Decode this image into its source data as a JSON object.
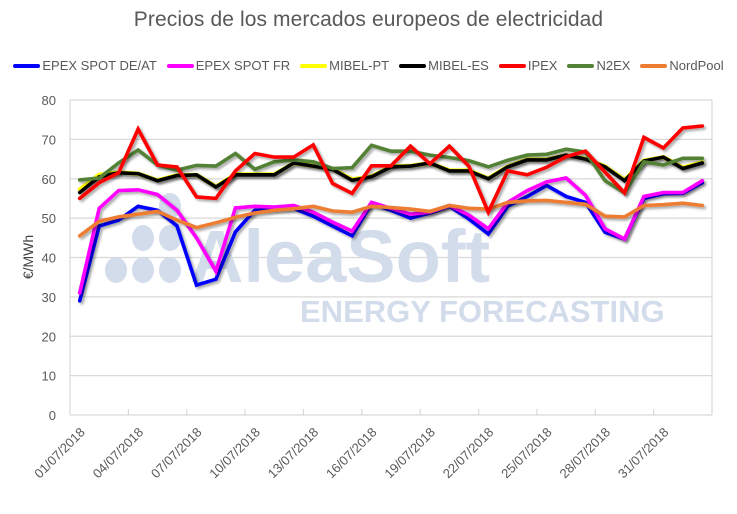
{
  "chart_data": {
    "type": "line",
    "title": "Precios de los mercados europeos de electricidad",
    "xlabel": "",
    "ylabel": "€/MWh",
    "ylim": [
      0,
      80
    ],
    "yticks": [
      0,
      10,
      20,
      30,
      40,
      50,
      60,
      70,
      80
    ],
    "grid": true,
    "legend_position": "top",
    "x": [
      "01/07/2018",
      "02/07/2018",
      "03/07/2018",
      "04/07/2018",
      "05/07/2018",
      "06/07/2018",
      "07/07/2018",
      "08/07/2018",
      "09/07/2018",
      "10/07/2018",
      "11/07/2018",
      "12/07/2018",
      "13/07/2018",
      "14/07/2018",
      "15/07/2018",
      "16/07/2018",
      "17/07/2018",
      "18/07/2018",
      "19/07/2018",
      "20/07/2018",
      "21/07/2018",
      "22/07/2018",
      "23/07/2018",
      "24/07/2018",
      "25/07/2018",
      "26/07/2018",
      "27/07/2018",
      "28/07/2018",
      "29/07/2018",
      "30/07/2018",
      "31/07/2018",
      "01/08/2018",
      "02/08/2018"
    ],
    "xtick_labels": [
      "01/07/2018",
      "04/07/2018",
      "07/07/2018",
      "10/07/2018",
      "13/07/2018",
      "16/07/2018",
      "19/07/2018",
      "22/07/2018",
      "25/07/2018",
      "28/07/2018",
      "31/07/2018"
    ],
    "series": [
      {
        "name": "EPEX SPOT DE/AT",
        "color": "#0000ff",
        "values": [
          29.0,
          48.0,
          49.5,
          53.0,
          52.0,
          48.0,
          33.0,
          34.5,
          46.5,
          52.0,
          52.3,
          52.5,
          50.5,
          48.0,
          45.5,
          53.7,
          52.0,
          50.0,
          51.3,
          53.0,
          49.8,
          46.0,
          53.0,
          55.5,
          58.3,
          55.5,
          54.0,
          46.4,
          44.7,
          55.0,
          56.2,
          56.3,
          59.0
        ]
      },
      {
        "name": "EPEX SPOT FR",
        "color": "#ff00ff",
        "values": [
          31.0,
          52.5,
          57.0,
          57.2,
          56.0,
          52.0,
          45.0,
          36.5,
          52.6,
          53.0,
          52.8,
          53.2,
          51.5,
          49.0,
          46.7,
          54.0,
          52.5,
          51.0,
          51.5,
          53.2,
          50.8,
          47.3,
          54.0,
          57.0,
          59.2,
          60.2,
          55.8,
          47.3,
          44.7,
          55.5,
          56.5,
          56.5,
          59.5
        ]
      },
      {
        "name": "MIBEL-PT",
        "color": "#ffff00",
        "values": [
          57.3,
          61.0,
          61.6,
          61.3,
          59.6,
          60.9,
          61.0,
          58.0,
          61.1,
          61.1,
          61.1,
          64.0,
          63.3,
          62.5,
          59.8,
          60.6,
          63.1,
          63.3,
          64.0,
          62.1,
          62.1,
          60.1,
          63.1,
          64.9,
          64.9,
          66.0,
          65.1,
          63.1,
          59.7,
          64.6,
          65.5,
          62.8,
          64.2
        ]
      },
      {
        "name": "MIBEL-ES",
        "color": "#000000",
        "values": [
          56.5,
          60.5,
          61.5,
          61.3,
          59.5,
          60.8,
          61.0,
          57.9,
          61.0,
          61.0,
          61.0,
          64.0,
          63.2,
          62.4,
          59.6,
          60.5,
          63.0,
          63.2,
          64.0,
          62.0,
          62.0,
          60.0,
          63.0,
          64.8,
          64.8,
          66.0,
          65.0,
          63.0,
          59.5,
          64.5,
          65.5,
          62.6,
          64.0
        ]
      },
      {
        "name": "IPEX",
        "color": "#ff0000",
        "values": [
          55.0,
          59.0,
          61.5,
          72.6,
          63.5,
          63.0,
          55.4,
          55.0,
          62.0,
          66.4,
          65.5,
          65.5,
          68.6,
          58.8,
          56.3,
          63.3,
          63.3,
          68.3,
          63.8,
          68.3,
          63.2,
          51.5,
          62.0,
          61.0,
          62.9,
          65.6,
          67.0,
          61.7,
          56.4,
          70.5,
          67.8,
          72.9,
          73.4
        ]
      },
      {
        "name": "N2EX",
        "color": "#538135",
        "values": [
          59.7,
          60.2,
          64.0,
          67.3,
          63.5,
          62.2,
          63.4,
          63.2,
          66.4,
          62.4,
          64.3,
          64.8,
          64.3,
          62.6,
          62.8,
          68.5,
          67.0,
          67.0,
          66.0,
          65.4,
          64.6,
          63.0,
          64.7,
          66.0,
          66.2,
          67.5,
          66.8,
          59.5,
          56.4,
          64.3,
          63.5,
          65.2,
          65.2
        ]
      },
      {
        "name": "NordPool",
        "color": "#ed7d31",
        "values": [
          45.5,
          49.2,
          50.3,
          51.0,
          51.7,
          49.5,
          47.6,
          48.8,
          50.2,
          51.3,
          52.0,
          52.4,
          53.0,
          51.8,
          51.5,
          53.0,
          52.7,
          52.3,
          51.7,
          53.2,
          52.5,
          52.3,
          54.0,
          54.4,
          54.5,
          54.0,
          53.5,
          50.5,
          50.3,
          53.2,
          53.4,
          53.8,
          53.2
        ]
      }
    ]
  },
  "watermark": {
    "brand": "AleaSoft",
    "tagline": "ENERGY FORECASTING"
  }
}
